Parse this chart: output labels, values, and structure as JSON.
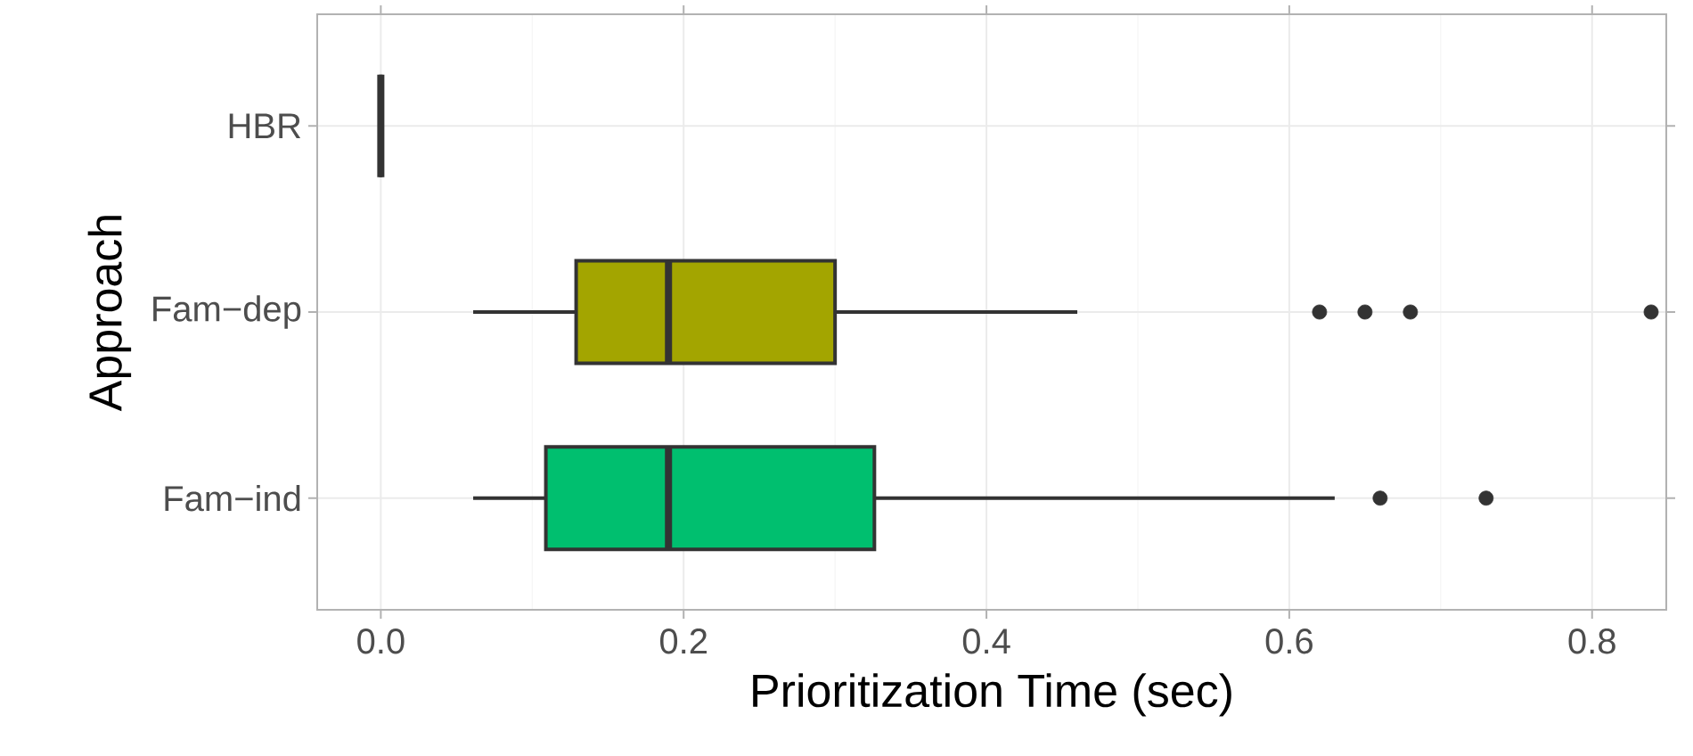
{
  "chart_data": {
    "type": "box",
    "orientation": "horizontal",
    "xlabel": "Prioritization Time (sec)",
    "ylabel": "Approach",
    "categories": [
      "HBR",
      "Fam−dep",
      "Fam−ind"
    ],
    "colors": [
      "#333333",
      "#a3a500",
      "#00bf6f"
    ],
    "boxes": [
      {
        "low": 0,
        "q1": 0,
        "median": 0,
        "q3": 0,
        "high": 0
      },
      {
        "low": 0.061,
        "q1": 0.129,
        "median": 0.19,
        "q3": 0.3,
        "high": 0.46,
        "outliers": [
          0.62,
          0.65,
          0.68,
          0.839
        ]
      },
      {
        "low": 0.061,
        "q1": 0.109,
        "median": 0.19,
        "q3": 0.326,
        "high": 0.63,
        "outliers": [
          0.66,
          0.73
        ]
      }
    ],
    "xlim": [
      -0.042,
      0.849
    ],
    "xticks": [
      {
        "value": 0,
        "label": "0.0"
      },
      0.2,
      0.4,
      0.6,
      0.8
    ],
    "grid": true
  }
}
